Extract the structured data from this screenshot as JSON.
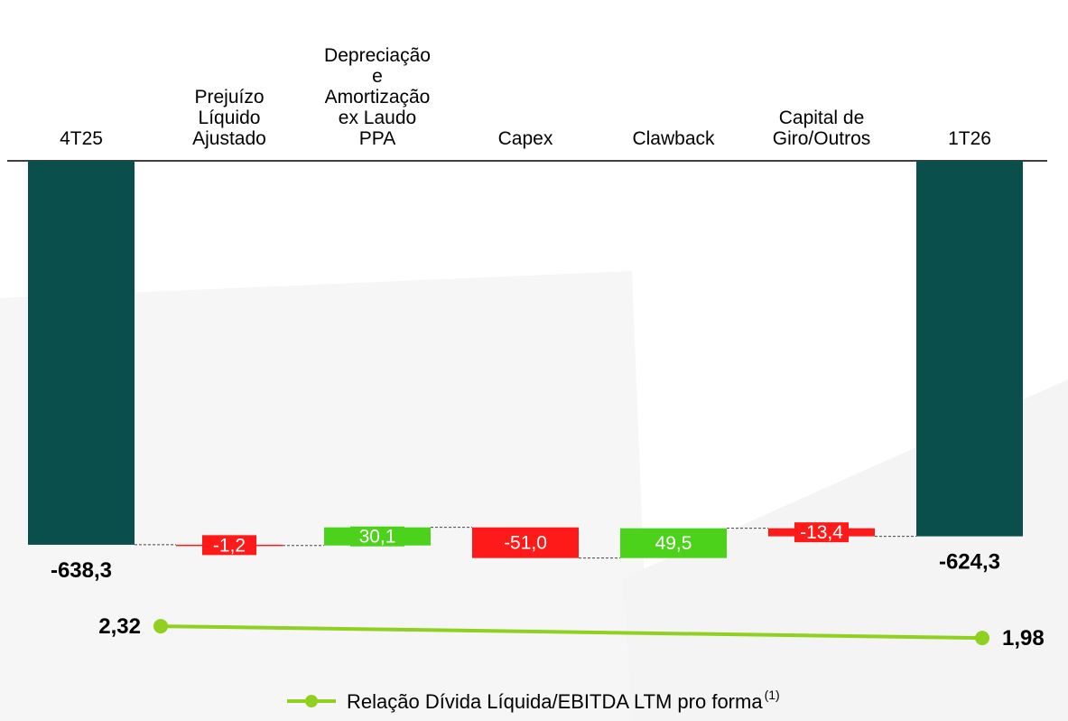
{
  "chart_data": {
    "type": "waterfall",
    "categories": [
      [
        "4T25"
      ],
      [
        "Prejuízo",
        "Líquido",
        "Ajustado"
      ],
      [
        "Depreciação",
        "e",
        "Amortização",
        "ex Laudo",
        "PPA"
      ],
      [
        "Capex"
      ],
      [
        "Clawback"
      ],
      [
        "Capital de",
        "Giro/Outros"
      ],
      [
        "1T26"
      ]
    ],
    "measure": [
      "absolute",
      "relative",
      "relative",
      "relative",
      "relative",
      "relative",
      "total"
    ],
    "values": [
      -638.3,
      -1.2,
      30.1,
      -51.0,
      49.5,
      -13.4,
      -624.3
    ],
    "value_labels": [
      "-638,3",
      "-1,2",
      "30,1",
      "-51,0",
      "49,5",
      "-13,4",
      "-624,3"
    ],
    "total_color": "#0b4f4c",
    "increase_color": "#4cd21b",
    "decrease_color": "#ff1a1a",
    "ylim": [
      -700,
      0
    ],
    "y2lim": [
      0,
      3
    ],
    "line_series": {
      "name": "Relação Dívida Líquida/EBITDA LTM pro forma",
      "name_note": "(1)",
      "color": "#8fd11e",
      "axis": "y2",
      "categories_index": [
        0,
        6
      ],
      "values": [
        2.32,
        1.98
      ],
      "value_labels": [
        "2,32",
        "1,98"
      ]
    }
  }
}
